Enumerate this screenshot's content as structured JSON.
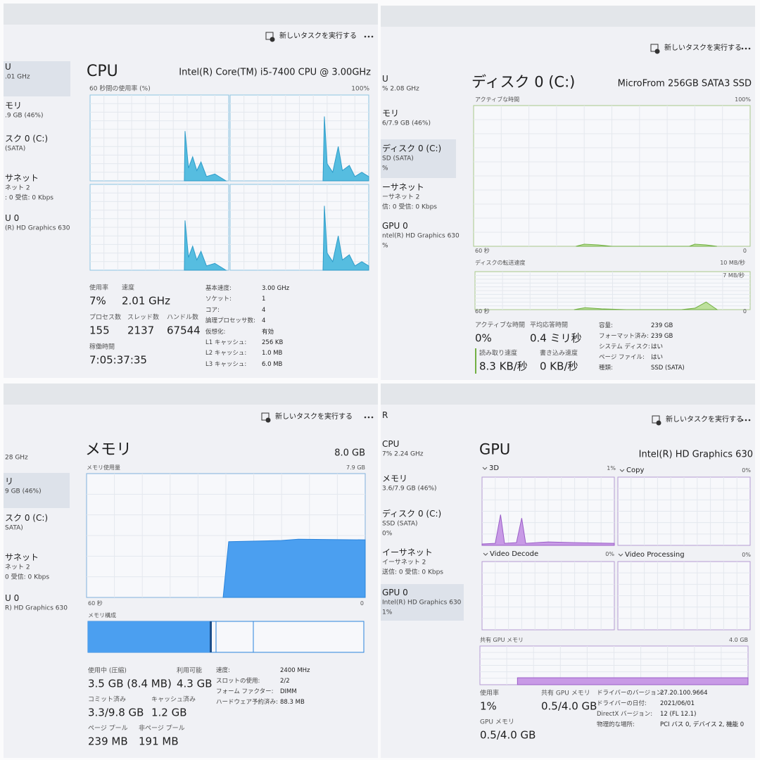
{
  "cpu": {
    "toolbar": "新しいタスクを実行する",
    "sidebar": [
      {
        "name": "U",
        "lines": [
          ".01 GHz"
        ]
      },
      {
        "name": "モリ",
        "lines": [
          ".9 GB (46%)"
        ]
      },
      {
        "name": "スク 0 (C:)",
        "lines": [
          "(SATA)"
        ]
      },
      {
        "name": "サネット",
        "lines": [
          "ネット 2",
          ": 0 受信: 0 Kbps"
        ]
      },
      {
        "name": "U 0",
        "lines": [
          "(R) HD Graphics 630"
        ]
      }
    ],
    "title": "CPU",
    "model": "Intel(R) Core(TM) i5-7400 CPU @ 3.00GHz",
    "graph_label": "60 秒間の使用率 (%)",
    "graph_max": "100%",
    "stats": [
      {
        "label": "使用率",
        "value": "7%"
      },
      {
        "label": "速度",
        "value": "2.01 GHz"
      },
      {
        "label": "プロセス数",
        "value": "155"
      },
      {
        "label": "スレッド数",
        "value": "2137"
      },
      {
        "label": "ハンドル数",
        "value": "67544"
      },
      {
        "label": "稼働時間",
        "value": "7:05:37:35"
      }
    ],
    "details": [
      {
        "label": "基本速度:",
        "value": "3.00 GHz"
      },
      {
        "label": "ソケット:",
        "value": "1"
      },
      {
        "label": "コア:",
        "value": "4"
      },
      {
        "label": "論理プロセッサ数:",
        "value": "4"
      },
      {
        "label": "仮想化:",
        "value": "有効"
      },
      {
        "label": "L1 キャッシュ:",
        "value": "256 KB"
      },
      {
        "label": "L2 キャッシュ:",
        "value": "1.0 MB"
      },
      {
        "label": "L3 キャッシュ:",
        "value": "6.0 MB"
      }
    ]
  },
  "disk": {
    "toolbar": "新しいタスクを実行する",
    "sidebar": [
      {
        "name": "U",
        "lines": [
          "% 2.08 GHz"
        ]
      },
      {
        "name": "モリ",
        "lines": [
          "6/7.9 GB (46%)"
        ]
      },
      {
        "name": "ディスク 0 (C:)",
        "lines": [
          "SD (SATA)",
          "%"
        ]
      },
      {
        "name": "ーサネット",
        "lines": [
          "ーサネット 2",
          "信: 0 受信: 0 Kbps"
        ]
      },
      {
        "name": "GPU 0",
        "lines": [
          "ntel(R) HD Graphics 630",
          "%"
        ]
      }
    ],
    "title": "ディスク 0 (C:)",
    "model": "MicroFrom 256GB SATA3 SSD",
    "graph1": {
      "label": "アクティブな時間",
      "max": "100%",
      "time": "60 秒",
      "min": "0"
    },
    "graph2": {
      "label": "ディスクの転送速度",
      "max": "10 MB/秒",
      "mark": "7 MB/秒",
      "time": "60 秒",
      "min": "0"
    },
    "stats": [
      {
        "label": "アクティブな時間",
        "value": "0%"
      },
      {
        "label": "平均応答時間",
        "value": "0.4 ミリ秒"
      },
      {
        "label": "読み取り速度",
        "value": "8.3 KB/秒"
      },
      {
        "label": "書き込み速度",
        "value": "0 KB/秒"
      }
    ],
    "details": [
      {
        "label": "容量:",
        "value": "239 GB"
      },
      {
        "label": "フォーマット済み:",
        "value": "239 GB"
      },
      {
        "label": "システム ディスク:",
        "value": "はい"
      },
      {
        "label": "ページ ファイル:",
        "value": "はい"
      },
      {
        "label": "種類:",
        "value": "SSD (SATA)"
      }
    ]
  },
  "memory": {
    "toolbar": "新しいタスクを実行する",
    "sidebar": [
      {
        "lines": [
          "28 GHz"
        ]
      },
      {
        "name": "リ",
        "lines": [
          "9 GB (46%)"
        ]
      },
      {
        "name": "スク 0 (C:)",
        "lines": [
          "SATA)"
        ]
      },
      {
        "name": "サネット",
        "lines": [
          "ネット 2",
          "0 受信: 0 Kbps"
        ]
      },
      {
        "name": "U 0",
        "lines": [
          "R) HD Graphics 630"
        ]
      }
    ],
    "title": "メモリ",
    "total": "8.0 GB",
    "graph_label": "メモリ使用量",
    "graph_max": "7.9 GB",
    "time": "60 秒",
    "min": "0",
    "composition": "メモリ構成",
    "stats": [
      {
        "label": "使用中 (圧縮)",
        "value": "3.5 GB (8.4 MB)"
      },
      {
        "label": "利用可能",
        "value": "4.3 GB"
      },
      {
        "label": "コミット済み",
        "value": "3.3/9.8 GB"
      },
      {
        "label": "キャッシュ済み",
        "value": "1.2 GB"
      },
      {
        "label": "ページ プール",
        "value": "239 MB"
      },
      {
        "label": "非ページ プール",
        "value": "191 MB"
      }
    ],
    "details": [
      {
        "label": "速度:",
        "value": "2400 MHz"
      },
      {
        "label": "スロットの使用:",
        "value": "2/2"
      },
      {
        "label": "フォーム ファクター:",
        "value": "DIMM"
      },
      {
        "label": "ハードウェア予約済み:",
        "value": "88.3 MB"
      }
    ]
  },
  "gpu": {
    "toolbar": "新しいタスクを実行する",
    "sidebar": [
      {
        "name": "R"
      },
      {
        "name": "CPU",
        "lines": [
          "7% 2.24 GHz"
        ]
      },
      {
        "name": "メモリ",
        "lines": [
          "3.6/7.9 GB (46%)"
        ]
      },
      {
        "name": "ディスク 0 (C:)",
        "lines": [
          "SSD (SATA)",
          "0%"
        ]
      },
      {
        "name": "イーサネット",
        "lines": [
          "イーサネット 2",
          "送信: 0 受信: 0 Kbps"
        ]
      },
      {
        "name": "GPU 0",
        "lines": [
          "Intel(R) HD Graphics 630",
          "1%"
        ]
      }
    ],
    "title": "GPU",
    "model": "Intel(R) HD Graphics 630",
    "engines": [
      {
        "name": "3D",
        "value": "1%"
      },
      {
        "name": "Copy",
        "value": "0%"
      },
      {
        "name": "Video Decode",
        "value": "0%"
      },
      {
        "name": "Video Processing",
        "value": "0%"
      }
    ],
    "shared_label": "共有 GPU メモリ",
    "shared_max": "4.0 GB",
    "stats": [
      {
        "label": "使用率",
        "value": "1%"
      },
      {
        "label": "共有 GPU メモリ",
        "value": "0.5/4.0 GB"
      },
      {
        "label": "GPU メモリ",
        "value": "0.5/4.0 GB"
      }
    ],
    "details": [
      {
        "label": "ドライバーのバージョン:",
        "value": "27.20.100.9664"
      },
      {
        "label": "ドライバーの日付:",
        "value": "2021/06/01"
      },
      {
        "label": "DirectX バージョン:",
        "value": "12 (FL 12.1)"
      },
      {
        "label": "物理的な場所:",
        "value": "PCI バス 0, デバイス 2, 機能 0"
      }
    ]
  }
}
